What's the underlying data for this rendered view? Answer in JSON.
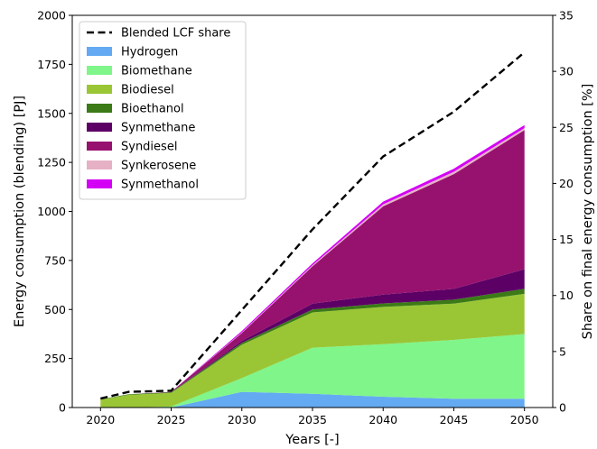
{
  "chart_data": {
    "type": "area",
    "stacked": true,
    "x": [
      2020,
      2022,
      2025,
      2030,
      2035,
      2040,
      2045,
      2050
    ],
    "series": [
      {
        "name": "Hydrogen",
        "color": "#64aaf2",
        "values": [
          0,
          0,
          0,
          80,
          70,
          55,
          45,
          45
        ]
      },
      {
        "name": "Biomethane",
        "color": "#80f58a",
        "values": [
          0,
          0,
          5,
          70,
          235,
          268,
          300,
          330
        ]
      },
      {
        "name": "Biodiesel",
        "color": "#9ac636",
        "values": [
          40,
          65,
          70,
          170,
          180,
          190,
          185,
          205
        ]
      },
      {
        "name": "Bioethanol",
        "color": "#3b7a17",
        "values": [
          2,
          3,
          3,
          10,
          15,
          18,
          20,
          25
        ]
      },
      {
        "name": "Synmethane",
        "color": "#5c0066",
        "values": [
          0,
          0,
          0,
          10,
          30,
          45,
          55,
          100
        ]
      },
      {
        "name": "Syndiesel",
        "color": "#97126e",
        "values": [
          0,
          0,
          2,
          40,
          190,
          450,
          585,
          710
        ]
      },
      {
        "name": "Synkerosene",
        "color": "#e6b1c5",
        "values": [
          0,
          0,
          0,
          3,
          6,
          10,
          12,
          10
        ]
      },
      {
        "name": "Synmethanol",
        "color": "#d400f5",
        "values": [
          0,
          0,
          0,
          7,
          9,
          14,
          16,
          15
        ]
      }
    ],
    "line_series": {
      "name": "Blended LCF share",
      "color": "#000000",
      "style": "dashed",
      "values": [
        0.8,
        1.4,
        1.5,
        8.7,
        15.9,
        22.4,
        26.4,
        31.7
      ]
    },
    "xlabel": "Years [-]",
    "ylabel": "Energy consumption (blending) [PJ]",
    "y2label": "Share on final energy consumption [%]",
    "xlim": [
      2018,
      2052
    ],
    "ylim": [
      0,
      2000
    ],
    "y2lim": [
      0,
      35
    ],
    "xticks": [
      2020,
      2025,
      2030,
      2035,
      2040,
      2045,
      2050
    ],
    "yticks": [
      0,
      250,
      500,
      750,
      1000,
      1250,
      1500,
      1750,
      2000
    ],
    "y2ticks": [
      0,
      5,
      10,
      15,
      20,
      25,
      30,
      35
    ],
    "legend_position": "top-left",
    "grid": false
  }
}
